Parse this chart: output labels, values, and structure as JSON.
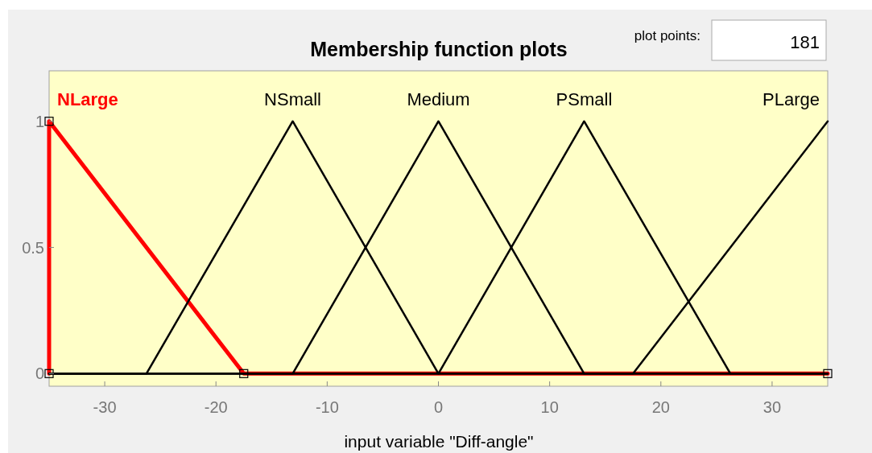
{
  "chart_data": {
    "type": "line",
    "title": "Membership function plots",
    "xlabel": "input variable \"Diff-angle\"",
    "annotations": [
      "plot points:",
      "181"
    ],
    "xlim": [
      -35,
      35
    ],
    "ylim": [
      -0.05,
      1.2
    ],
    "xticks": [
      -30,
      -20,
      -10,
      0,
      10,
      20,
      30
    ],
    "yticks": [
      0,
      0.5,
      1
    ],
    "grid": false,
    "series": [
      {
        "name": "NLarge",
        "color": "#ff0000",
        "x": [
          -35,
          -35,
          -17.5,
          35
        ],
        "values": [
          0,
          1,
          0,
          0
        ],
        "marker": "square"
      },
      {
        "name": "NSmall",
        "color": "#000000",
        "x": [
          -35,
          -26.25,
          -13.1,
          0,
          35
        ],
        "values": [
          0,
          0,
          1,
          0,
          0
        ]
      },
      {
        "name": "Medium",
        "color": "#000000",
        "x": [
          -35,
          -13.1,
          0,
          13.1,
          35
        ],
        "values": [
          0,
          0,
          1,
          0,
          0
        ]
      },
      {
        "name": "PSmall",
        "color": "#000000",
        "x": [
          -35,
          0,
          13.1,
          26.25,
          35
        ],
        "values": [
          0,
          0,
          1,
          0,
          0
        ]
      },
      {
        "name": "PLarge",
        "color": "#000000",
        "x": [
          -35,
          17.5,
          35
        ],
        "values": [
          0,
          0,
          1
        ]
      }
    ]
  }
}
